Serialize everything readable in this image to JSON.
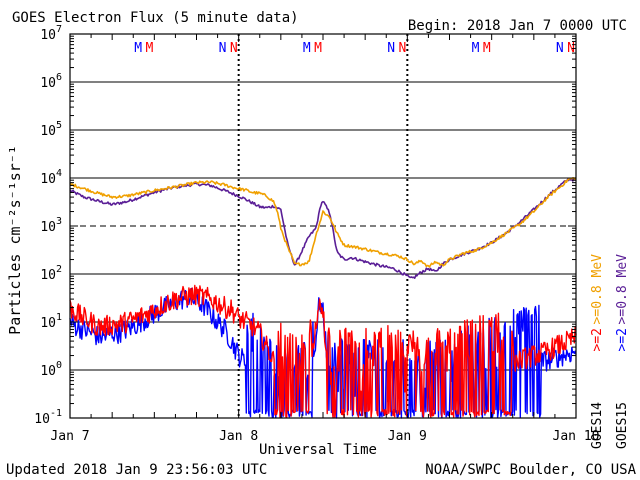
{
  "header": {
    "title": "GOES Electron Flux (5 minute data)",
    "begin": "Begin: 2018 Jan 7 0000 UTC"
  },
  "footer": {
    "updated": "Updated 2018 Jan  9 23:56:03 UTC",
    "source": "NOAA/SWPC Boulder, CO USA"
  },
  "colors": {
    "goes14_08": "#f0a000",
    "goes15_08": "#5a1e96",
    "goes14_2": "#ff0000",
    "goes15_2": "#0000ff",
    "grid": "#000000"
  },
  "chart_data": {
    "type": "line",
    "title": "GOES Electron Flux (5 minute data)",
    "xlabel": "Universal Time",
    "ylabel": "Particles cm⁻²s⁻¹sr⁻¹",
    "y_scale": "log",
    "ylim": [
      0.1,
      10000000
    ],
    "xlim": [
      0,
      72
    ],
    "x_unit": "hours since 2018 Jan 7 0000 UTC",
    "x_ticks": [
      {
        "x": 0,
        "label": "Jan 7"
      },
      {
        "x": 24,
        "label": "Jan 8"
      },
      {
        "x": 48,
        "label": "Jan 9"
      },
      {
        "x": 72,
        "label": "Jan 10"
      }
    ],
    "y_ticks": [
      {
        "value": 0.1,
        "base": "10",
        "exp": "-1"
      },
      {
        "value": 1,
        "base": "10",
        "exp": "0"
      },
      {
        "value": 10,
        "base": "10",
        "exp": "1"
      },
      {
        "value": 100,
        "base": "10",
        "exp": "2"
      },
      {
        "value": 1000,
        "base": "10",
        "exp": "3"
      },
      {
        "value": 10000,
        "base": "10",
        "exp": "4"
      },
      {
        "value": 100000,
        "base": "10",
        "exp": "5"
      },
      {
        "value": 1000000,
        "base": "10",
        "exp": "6"
      },
      {
        "value": 10000000,
        "base": "10",
        "exp": "7"
      }
    ],
    "dashed_threshold": 1000,
    "day_dividers": [
      24,
      48
    ],
    "local_time_markers": [
      {
        "x": 9.7,
        "label": "M",
        "satellite": "GOES15"
      },
      {
        "x": 11.3,
        "label": "M",
        "satellite": "GOES14"
      },
      {
        "x": 21.7,
        "label": "N",
        "satellite": "GOES15"
      },
      {
        "x": 23.3,
        "label": "N",
        "satellite": "GOES14"
      },
      {
        "x": 33.7,
        "label": "M",
        "satellite": "GOES15"
      },
      {
        "x": 35.3,
        "label": "M",
        "satellite": "GOES14"
      },
      {
        "x": 45.7,
        "label": "N",
        "satellite": "GOES15"
      },
      {
        "x": 47.3,
        "label": "N",
        "satellite": "GOES14"
      },
      {
        "x": 57.7,
        "label": "M",
        "satellite": "GOES15"
      },
      {
        "x": 59.3,
        "label": "M",
        "satellite": "GOES14"
      },
      {
        "x": 69.7,
        "label": "N",
        "satellite": "GOES15"
      },
      {
        "x": 71.3,
        "label": "N",
        "satellite": "GOES14"
      }
    ],
    "legend": {
      "placement": "right",
      "goes14_label": "GOES14",
      "goes15_label": "GOES15",
      "entries": [
        {
          "text": ">=0.8  MeV",
          "color": "#f0a000",
          "column": "GOES14"
        },
        {
          "text": ">=0.8  MeV",
          "color": "#5a1e96",
          "column": "GOES15"
        },
        {
          "text": ">=2",
          "color": "#ff0000",
          "column": "GOES14"
        },
        {
          "text": ">=2",
          "color": "#0000ff",
          "column": "GOES15"
        }
      ]
    },
    "series": [
      {
        "name": "GOES14 >=0.8 MeV",
        "color": "#f0a000",
        "style": "smooth",
        "x": [
          0,
          2,
          4,
          6,
          8,
          10,
          12,
          14,
          16,
          18,
          20,
          22,
          23,
          24,
          25,
          26,
          27,
          28,
          29,
          29.5,
          30,
          31,
          32,
          33,
          34,
          35,
          35.7,
          36,
          37,
          38,
          39,
          40,
          42,
          44,
          46,
          47,
          48,
          48.5,
          49,
          50,
          51,
          52,
          53,
          54,
          56,
          58,
          60,
          62,
          64,
          66,
          68,
          70,
          71,
          72
        ],
        "y": [
          7500,
          6000,
          4800,
          4000,
          4200,
          4800,
          5500,
          6200,
          7000,
          8000,
          8200,
          7200,
          6500,
          6000,
          5600,
          5000,
          4800,
          4200,
          3200,
          2000,
          900,
          350,
          160,
          160,
          180,
          650,
          1400,
          2000,
          1500,
          700,
          400,
          380,
          330,
          280,
          250,
          230,
          200,
          180,
          160,
          190,
          140,
          180,
          150,
          200,
          270,
          320,
          450,
          700,
          1100,
          2000,
          4000,
          7000,
          9500,
          10000
        ]
      },
      {
        "name": "GOES15 >=0.8 MeV",
        "color": "#5a1e96",
        "style": "smooth",
        "x": [
          0,
          2,
          4,
          6,
          8,
          10,
          12,
          14,
          16,
          18,
          20,
          22,
          24,
          25,
          26,
          27,
          28,
          29,
          30,
          31,
          32,
          33,
          34,
          35,
          35.7,
          36,
          37,
          38,
          39,
          40,
          41,
          42,
          44,
          46,
          47,
          48,
          48.5,
          49,
          50,
          51,
          52,
          53,
          54,
          56,
          58,
          60,
          62,
          64,
          66,
          68,
          70,
          71,
          72
        ],
        "y": [
          5500,
          4000,
          3300,
          2800,
          3200,
          4000,
          5000,
          6000,
          6800,
          7500,
          7000,
          5500,
          4200,
          3600,
          3000,
          2500,
          2400,
          2600,
          2200,
          400,
          150,
          300,
          600,
          900,
          2800,
          3300,
          1800,
          280,
          200,
          220,
          200,
          180,
          150,
          130,
          110,
          90,
          80,
          85,
          110,
          130,
          110,
          160,
          200,
          260,
          330,
          450,
          700,
          1200,
          2200,
          4200,
          7500,
          9500,
          9000
        ]
      },
      {
        "name": "GOES14 >=2 MeV",
        "color": "#ff0000",
        "style": "noisy",
        "x": [
          0,
          1,
          2,
          3,
          4,
          5,
          6,
          7,
          8,
          9,
          10,
          11,
          12,
          13,
          14,
          15,
          16,
          17,
          18,
          19,
          20,
          21,
          22,
          23,
          24,
          25,
          26,
          27,
          28,
          29,
          30,
          30.5,
          31,
          32,
          33,
          34,
          35,
          35.5,
          36,
          36.5,
          37,
          38,
          39,
          40,
          41,
          42,
          43,
          44,
          45,
          46,
          47,
          48,
          49,
          50,
          51,
          52,
          53,
          54,
          55,
          56,
          57,
          58,
          59,
          60,
          61,
          62,
          63,
          64,
          65,
          66,
          67,
          68,
          69,
          70,
          71,
          72
        ],
        "y": [
          20,
          15,
          12,
          10,
          8,
          8,
          9,
          9,
          10,
          11,
          13,
          15,
          18,
          22,
          26,
          30,
          33,
          35,
          36,
          33,
          30,
          25,
          20,
          18,
          12,
          10,
          8,
          6,
          3,
          1.5,
          0.5,
          0.3,
          0.3,
          0.3,
          0.3,
          0.5,
          8,
          30,
          20,
          1.5,
          0.3,
          0.3,
          0.5,
          0.4,
          0.3,
          0.4,
          0.3,
          0.4,
          0.5,
          0.3,
          0.4,
          0.3,
          0.4,
          0.3,
          0.4,
          0.5,
          0.3,
          0.4,
          0.5,
          0.6,
          0.6,
          0.7,
          0.8,
          0.9,
          1,
          1.2,
          1.5,
          1.6,
          1.8,
          2,
          2.2,
          2.5,
          3,
          3.5,
          4,
          5
        ]
      },
      {
        "name": "GOES15 >=2 MeV",
        "color": "#0000ff",
        "style": "noisy",
        "x": [
          0,
          1,
          2,
          3,
          4,
          5,
          6,
          7,
          8,
          9,
          10,
          11,
          12,
          13,
          14,
          15,
          16,
          17,
          18,
          19,
          20,
          21,
          22,
          23,
          24,
          25,
          26,
          27,
          28,
          29,
          30,
          31,
          32,
          33,
          34,
          35,
          35.5,
          36,
          37,
          38,
          39,
          40,
          41,
          42,
          43,
          44,
          45,
          46,
          47,
          48,
          49,
          50,
          51,
          52,
          53,
          54,
          55,
          56,
          57,
          58,
          59,
          60,
          61,
          62,
          63,
          64,
          65,
          66,
          67,
          68,
          69,
          70,
          71,
          72
        ],
        "y": [
          10,
          8,
          7,
          6,
          5,
          5,
          6,
          6,
          7,
          8,
          10,
          12,
          15,
          18,
          22,
          26,
          30,
          32,
          28,
          22,
          15,
          10,
          7,
          4,
          2,
          1.5,
          1,
          0.6,
          0.3,
          0.2,
          0.2,
          0.2,
          0.2,
          0.2,
          0.2,
          5,
          28,
          15,
          0.5,
          0.2,
          0.3,
          0.2,
          0.2,
          0.3,
          0.2,
          0.3,
          0.2,
          0.2,
          0.3,
          0.2,
          0.2,
          0.3,
          0.2,
          0.3,
          0.2,
          0.3,
          0.4,
          0.4,
          0.5,
          0.5,
          0.6,
          0.7,
          0.8,
          0.9,
          1,
          1,
          1.2,
          1.3,
          1.5,
          1.6,
          1.8,
          2,
          2.2,
          2.5
        ]
      }
    ]
  }
}
